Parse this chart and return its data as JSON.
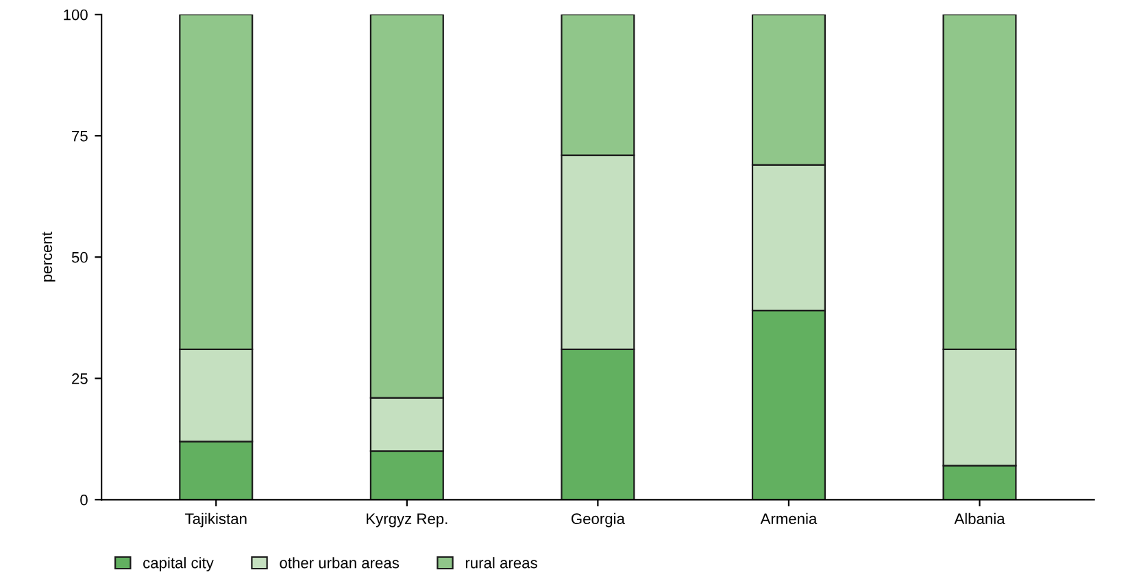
{
  "chart_data": {
    "type": "bar",
    "stacked": true,
    "ylabel": "percent",
    "categories": [
      "Tajikistan",
      "Kyrgyz Rep.",
      "Georgia",
      "Armenia",
      "Albania"
    ],
    "series": [
      {
        "name": "capital city",
        "color": "#62b060",
        "values": [
          12,
          10,
          31,
          39,
          7
        ]
      },
      {
        "name": "other urban areas",
        "color": "#c5e0c0",
        "values": [
          19,
          11,
          40,
          30,
          24
        ]
      },
      {
        "name": "rural areas",
        "color": "#90c68a",
        "values": [
          69,
          79,
          29,
          31,
          69
        ]
      }
    ],
    "ylim": [
      0,
      100
    ],
    "yticks": [
      0,
      25,
      50,
      75,
      100
    ],
    "grid": false,
    "legend": "bottom left"
  }
}
